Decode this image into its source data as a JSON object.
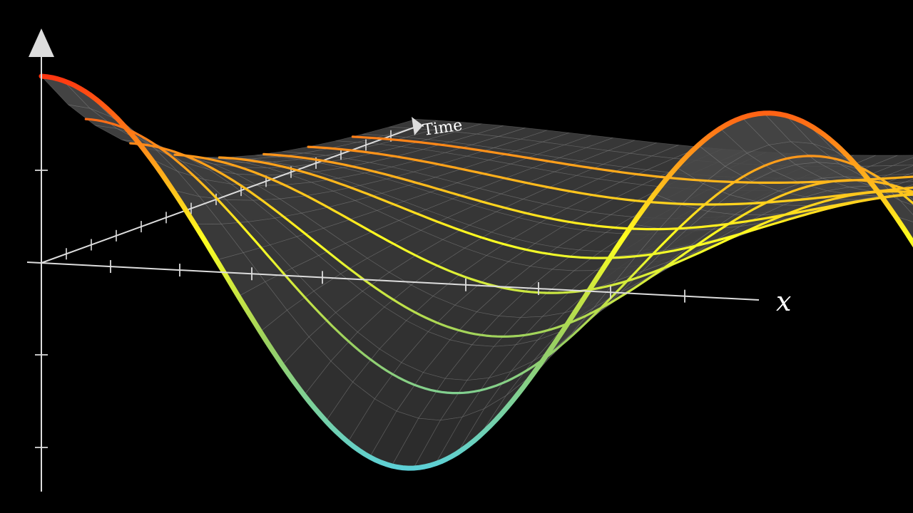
{
  "scene": {
    "background_color": "#000000",
    "description_kind": "3d-surface-heat-equation",
    "axes": {
      "x_label": "x",
      "time_label": "Time",
      "axis_color": "#dddddd"
    },
    "surface": {
      "fill_color": "#3a3a3a",
      "grid_color": "#9a9a9a"
    },
    "curve_gradient": {
      "high_color": "#ff3010",
      "mid_high_color": "#ff9a1a",
      "mid_color": "#ffff20",
      "mid_low_color": "#9ad060",
      "low_color": "#5cd0d8"
    },
    "time_slices": 8
  }
}
